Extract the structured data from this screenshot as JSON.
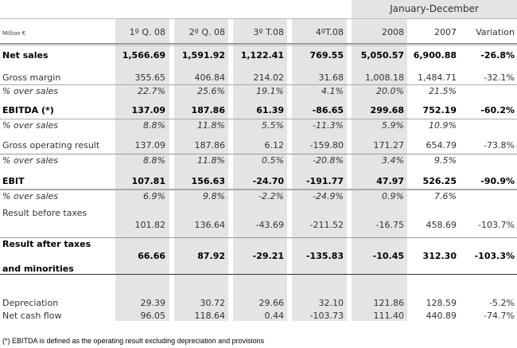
{
  "header": {
    "period_group": "January-December",
    "unit_label": "Million €",
    "columns": [
      "1º Q. 08",
      "2º Q. 08",
      "3º T.08",
      "4ºT.08",
      "2008",
      "2007",
      "Variation"
    ]
  },
  "rows": [
    {
      "label": "Net sales",
      "style": "bold",
      "values": [
        "1,566.69",
        "1,591.92",
        "1,122.41",
        "769.55",
        "5,050.57",
        "6,900.88",
        "-26.8%"
      ]
    },
    {
      "label": "Gross margin",
      "style": "normal",
      "values": [
        "355.65",
        "406.84",
        "214.02",
        "31.68",
        "1,008.18",
        "1,484.71",
        "-32.1%"
      ]
    },
    {
      "label": "% over sales",
      "style": "italic",
      "values": [
        "22.7%",
        "25.6%",
        "19.1%",
        "4.1%",
        "20.0%",
        "21.5%",
        ""
      ]
    },
    {
      "label": "EBITDA (*)",
      "style": "bold",
      "values": [
        "137.09",
        "187.86",
        "61.39",
        "-86.65",
        "299.68",
        "752.19",
        "-60.2%"
      ]
    },
    {
      "label": "% over sales",
      "style": "italic",
      "values": [
        "8.8%",
        "11.8%",
        "5.5%",
        "-11.3%",
        "5.9%",
        "10.9%",
        ""
      ]
    },
    {
      "label": "Gross operating result",
      "style": "normal",
      "values": [
        "137.09",
        "187.86",
        "6.12",
        "-159.80",
        "171.27",
        "654.79",
        "-73.8%"
      ]
    },
    {
      "label": "% over sales",
      "style": "italic",
      "values": [
        "8.8%",
        "11.8%",
        "0.5%",
        "-20.8%",
        "3.4%",
        "9.5%",
        ""
      ]
    },
    {
      "label": "EBIT",
      "style": "bold",
      "values": [
        "107.81",
        "156.63",
        "-24.70",
        "-191.77",
        "47.97",
        "526.25",
        "-90.9%"
      ]
    },
    {
      "label": "% over sales",
      "style": "italic",
      "values": [
        "6.9%",
        "9.8%",
        "-2.2%",
        "-24.9%",
        "0.9%",
        "7.6%",
        ""
      ]
    },
    {
      "label": "Result before taxes",
      "style": "normal",
      "values": [
        "101.82",
        "136.64",
        "-43.69",
        "-211.52",
        "-16.75",
        "458.69",
        "-103.7%"
      ]
    },
    {
      "label": "Result after taxes",
      "label2": "and minorities",
      "style": "bold",
      "values": [
        "66.66",
        "87.92",
        "-29.21",
        "-135.83",
        "-10.45",
        "312.30",
        "-103.3%"
      ]
    },
    {
      "label": "Depreciation",
      "style": "normal",
      "values": [
        "29.39",
        "30.72",
        "29.66",
        "32.10",
        "121.86",
        "128.59",
        "-5.2%"
      ]
    },
    {
      "label": "Net cash flow",
      "style": "normal",
      "values": [
        "96.05",
        "118.64",
        "0.44",
        "-103.73",
        "111.40",
        "440.89",
        "-74.7%"
      ]
    }
  ],
  "footnote": "(*) EBITDA is defined as the operating result excluding depreciation and provisions"
}
